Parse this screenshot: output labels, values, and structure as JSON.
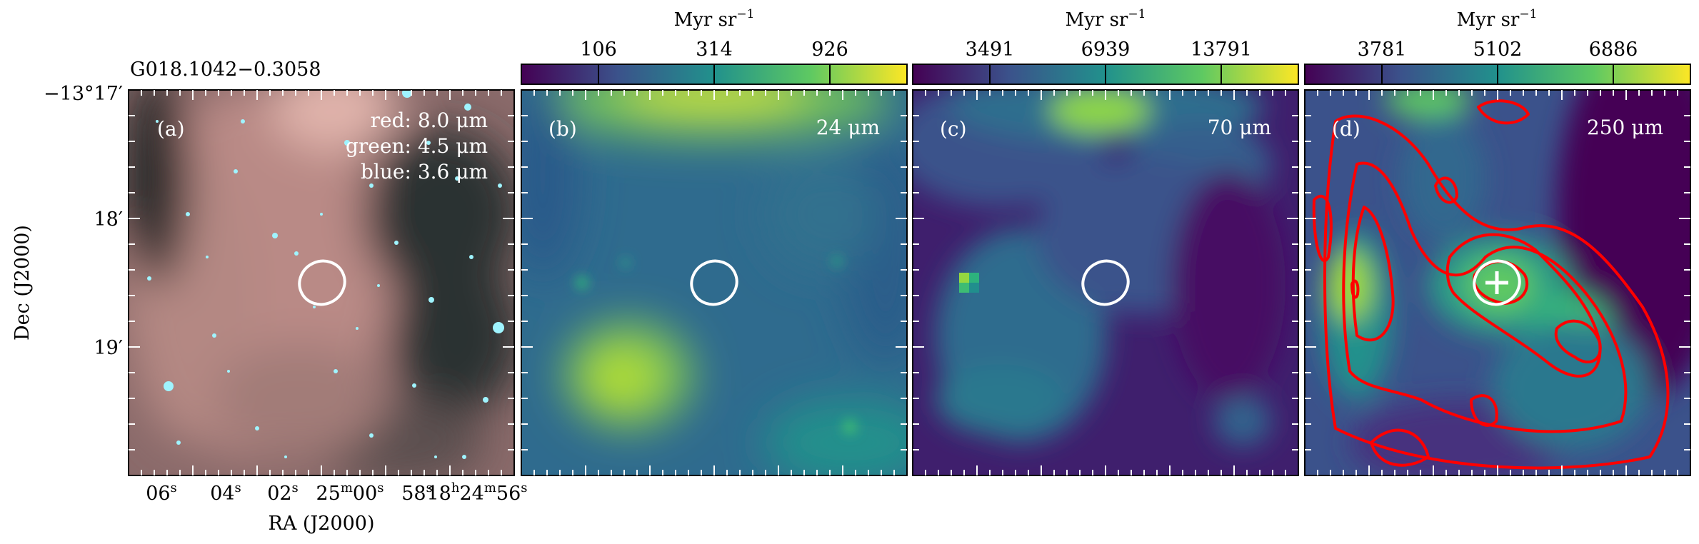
{
  "source_name": "G018.1042−0.3058",
  "axes": {
    "ylabel": "Dec (J2000)",
    "xlabel": "RA (J2000)",
    "dec_ticks": [
      "−13°17′",
      "18′",
      "19′"
    ],
    "ra_ticks": [
      {
        "main": "06",
        "sup": "s"
      },
      {
        "main": "04",
        "sup": "s"
      },
      {
        "main": "02",
        "sup": "s"
      },
      {
        "main": "25",
        "sup": "m",
        "main2": "00",
        "sup2": "s"
      },
      {
        "main": "58",
        "sup": "s"
      },
      {
        "main": "18",
        "sup": "h",
        "main2": "24",
        "sup2": "m",
        "main3": "56",
        "sup3": "s"
      }
    ]
  },
  "panels": [
    {
      "letter": "(a)",
      "lines": [
        "red: 8.0 μm",
        "green: 4.5 μm",
        "blue: 3.6 μm"
      ]
    },
    {
      "letter": "(b)",
      "wavelength": "24 μm"
    },
    {
      "letter": "(c)",
      "wavelength": "70 μm"
    },
    {
      "letter": "(d)",
      "wavelength": "250 μm"
    }
  ],
  "colorbars": [
    {
      "unit": "Myr sr",
      "unit_exp": "−1",
      "ticks": [
        "106",
        "314",
        "926"
      ]
    },
    {
      "unit": "Myr sr",
      "unit_exp": "−1",
      "ticks": [
        "3491",
        "6939",
        "13791"
      ]
    },
    {
      "unit": "Myr sr",
      "unit_exp": "−1",
      "ticks": [
        "3781",
        "5102",
        "6886"
      ]
    }
  ],
  "colors": {
    "viridis_dark": "#440154",
    "viridis_blue": "#31688e",
    "viridis_green": "#35b779",
    "viridis_yellow": "#fde725",
    "contour": "#ff0000",
    "marker": "#ffffff"
  }
}
